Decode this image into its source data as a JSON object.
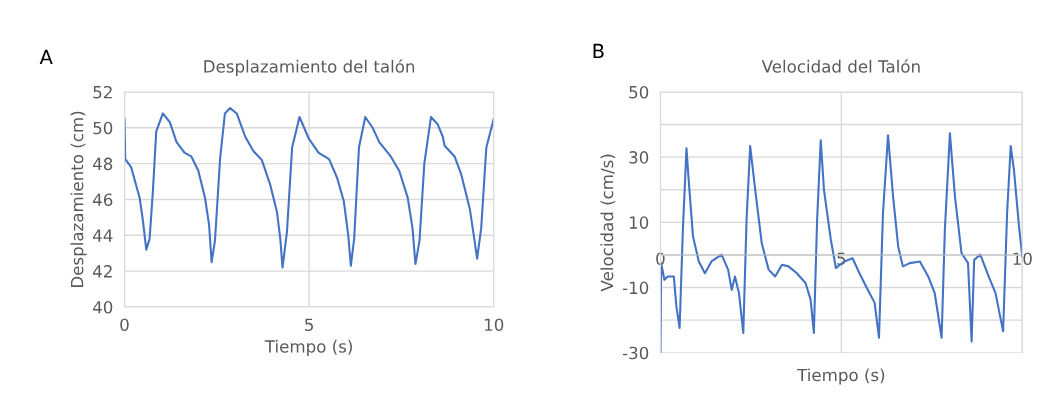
{
  "chart_data": [
    {
      "type": "line",
      "title": "Desplazamiento del talón",
      "xlabel": "Tiempo (s)",
      "ylabel": "Desplazamiento (cm)",
      "annotations": [
        "A"
      ],
      "xlim": [
        0,
        10
      ],
      "xticks": [
        0,
        5,
        10
      ],
      "ylim": [
        40,
        52
      ],
      "yticks": [
        40,
        42,
        44,
        46,
        48,
        50,
        52
      ],
      "grid": true,
      "series": [
        {
          "color": "#4472c4",
          "x": [
            0,
            0.02,
            0.18,
            0.41,
            0.5,
            0.59,
            0.68,
            0.77,
            0.86,
            1.04,
            1.23,
            1.41,
            1.63,
            1.81,
            2.0,
            2.18,
            2.29,
            2.36,
            2.45,
            2.59,
            2.72,
            2.86,
            3.04,
            3.27,
            3.49,
            3.72,
            3.95,
            4.13,
            4.22,
            4.28,
            4.4,
            4.54,
            4.74,
            4.99,
            5.26,
            5.54,
            5.76,
            5.94,
            6.06,
            6.13,
            6.22,
            6.35,
            6.52,
            6.72,
            6.9,
            7.21,
            7.44,
            7.67,
            7.8,
            7.88,
            7.99,
            8.12,
            8.3,
            8.48,
            8.62,
            8.67,
            8.94,
            9.12,
            9.35,
            9.48,
            9.55,
            9.66,
            9.8,
            10
          ],
          "values": [
            50.5,
            48.25,
            47.8,
            46.1,
            44.8,
            43.2,
            43.8,
            46.5,
            49.8,
            50.8,
            50.3,
            49.2,
            48.6,
            48.4,
            47.6,
            46.1,
            44.6,
            42.5,
            43.7,
            48.3,
            50.8,
            51.1,
            50.8,
            49.5,
            48.7,
            48.2,
            46.8,
            45.3,
            43.8,
            42.2,
            44.2,
            48.9,
            50.6,
            49.4,
            48.6,
            48.25,
            47.2,
            45.9,
            44.0,
            42.3,
            43.8,
            48.9,
            50.6,
            50.0,
            49.2,
            48.4,
            47.6,
            46.1,
            44.4,
            42.4,
            43.7,
            48.0,
            50.6,
            50.2,
            49.5,
            49.0,
            48.4,
            47.4,
            45.5,
            43.7,
            42.7,
            44.4,
            48.9,
            50.5
          ]
        }
      ]
    },
    {
      "type": "line",
      "title": "Velocidad del Talón",
      "xlabel": "Tiempo (s)",
      "ylabel": "Velocidad (cm/s)",
      "annotations": [
        "B"
      ],
      "xlim": [
        0,
        10
      ],
      "xticks": [
        0,
        5,
        10
      ],
      "ylim": [
        -30,
        50
      ],
      "yticks": [
        -30,
        {
          "value": -20,
          "label": null
        },
        -10,
        {
          "value": 0,
          "label": null
        },
        10,
        {
          "value": 20,
          "label": null
        },
        30,
        {
          "value": 40,
          "label": null
        },
        50
      ],
      "grid": true,
      "series": [
        {
          "color": "#4472c4",
          "x": [
            0,
            0.02,
            0.11,
            0.2,
            0.37,
            0.44,
            0.53,
            0.62,
            0.72,
            0.78,
            0.9,
            1.06,
            1.23,
            1.41,
            1.69,
            1.87,
            1.97,
            2.06,
            2.17,
            2.29,
            2.38,
            2.48,
            2.62,
            2.8,
            2.99,
            3.17,
            3.36,
            3.54,
            3.77,
            4.01,
            4.15,
            4.24,
            4.33,
            4.43,
            4.52,
            4.71,
            4.85,
            5.08,
            5.31,
            5.5,
            5.68,
            5.92,
            6.04,
            6.15,
            6.29,
            6.43,
            6.57,
            6.7,
            6.89,
            7.17,
            7.4,
            7.58,
            7.77,
            7.86,
            8.0,
            8.14,
            8.32,
            8.5,
            8.6,
            8.67,
            8.84,
            9.07,
            9.26,
            9.47,
            9.58,
            9.68,
            9.77,
            9.91,
            10
          ],
          "values": [
            -30,
            -2.5,
            -7.6,
            -6.6,
            -6.6,
            -15.7,
            -22.4,
            7.7,
            32.7,
            23,
            5.7,
            -2,
            -5.6,
            -2,
            0.1,
            -4.5,
            -10.7,
            -6.6,
            -11.7,
            -23.9,
            10.8,
            33.4,
            19.9,
            3.6,
            -4.5,
            -6.6,
            -3,
            -3.5,
            -5.6,
            -8.6,
            -13.7,
            -23.9,
            10.8,
            35.2,
            19.9,
            4.6,
            -4,
            -2,
            -1,
            -5.6,
            -9.6,
            -14.7,
            -25.4,
            12.8,
            36.7,
            17.8,
            2.6,
            -3.5,
            -2.5,
            -2,
            -6.6,
            -11.7,
            -25.4,
            7.7,
            37.3,
            17.8,
            0.6,
            -2.5,
            -26.5,
            -1.5,
            0.1,
            -6.6,
            -11.7,
            -23.4,
            12.8,
            33.4,
            26,
            8.7,
            -0.5
          ]
        }
      ]
    }
  ]
}
